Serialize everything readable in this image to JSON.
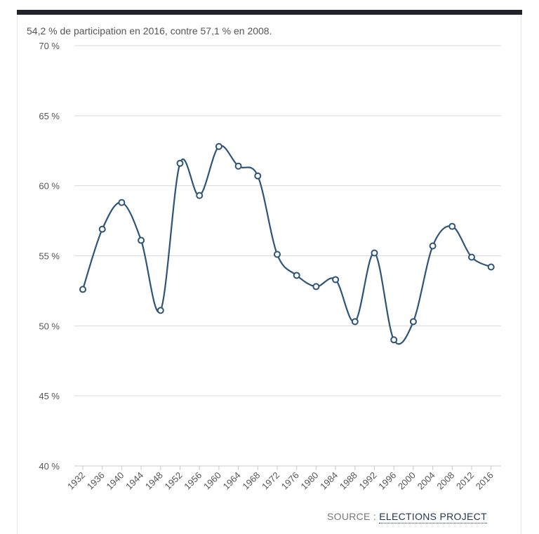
{
  "subtitle": "54,2 % de participation en 2016, contre 57,1 % en 2008.",
  "source": {
    "prefix": "SOURCE : ",
    "link_label": "ELECTIONS PROJECT"
  },
  "colors": {
    "line": "#2e5479",
    "grid": "#d9d9d9",
    "text": "#555555",
    "top_bar": "#1f242a"
  },
  "chart_data": {
    "type": "line",
    "title": "",
    "xlabel": "",
    "ylabel": "",
    "ylim": [
      40,
      70
    ],
    "y_ticks": [
      40,
      45,
      50,
      55,
      60,
      65,
      70
    ],
    "y_tick_labels": [
      "40 %",
      "45 %",
      "50 %",
      "55 %",
      "60 %",
      "65 %",
      "70 %"
    ],
    "categories": [
      "1932",
      "1936",
      "1940",
      "1944",
      "1948",
      "1952",
      "1956",
      "1960",
      "1964",
      "1968",
      "1972",
      "1976",
      "1980",
      "1984",
      "1988",
      "1992",
      "1996",
      "2000",
      "2004",
      "2008",
      "2012",
      "2016"
    ],
    "series": [
      {
        "values": [
          52.6,
          56.9,
          58.8,
          56.1,
          51.1,
          61.6,
          59.3,
          62.8,
          61.4,
          60.7,
          55.1,
          53.6,
          52.8,
          53.3,
          50.3,
          55.2,
          49.0,
          50.3,
          55.7,
          57.1,
          54.9,
          54.2
        ]
      }
    ],
    "grid": true,
    "legend": "none"
  }
}
